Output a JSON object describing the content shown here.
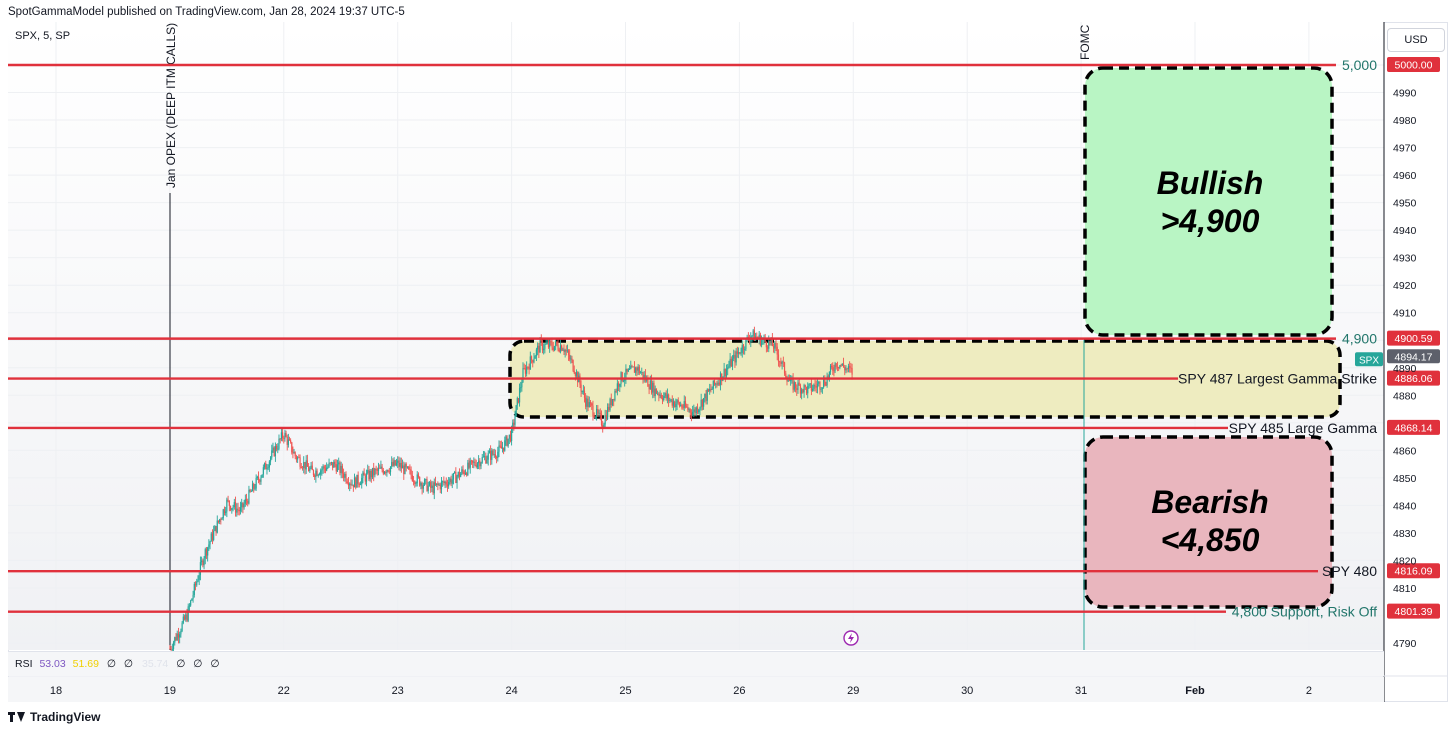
{
  "header": {
    "publisher": "SpotGammaModel published on TradingView.com, Jan 28, 2024 19:37 UTC-5"
  },
  "symbol": "SPX, 5, SP",
  "currency_button": "USD",
  "rsi": {
    "label": "RSI",
    "value1": "53.03",
    "value2": "51.69",
    "value3": "35.74",
    "value4": "∅",
    "placeholder": "∅"
  },
  "footer": {
    "brand": "TradingView"
  },
  "event_lines": [
    {
      "label": "Jan OPEX (DEEP ITM CALLS)",
      "x": "19"
    },
    {
      "label": "FOMC",
      "x": "31"
    }
  ],
  "zones": {
    "bullish": {
      "line1": "Bullish",
      "line2": ">4,900",
      "color": "#b9f5c4"
    },
    "bearish": {
      "line1": "Bearish",
      "line2": "<4,850",
      "color": "#e9b6be"
    },
    "range": {
      "color": "#eeecc0"
    }
  },
  "colors": {
    "level_line": "#e0313c",
    "up_candle": "#26a69a",
    "down_candle": "#ef5350",
    "price_tag": "#5d606b",
    "fomc_line": "#26a69a",
    "green_text": "#22766b"
  },
  "chart_data": {
    "type": "candlestick",
    "title": "",
    "x_ticks": [
      {
        "label": "18",
        "day": 17.5
      },
      {
        "label": "19",
        "day": 18.5
      },
      {
        "label": "22",
        "day": 19.5
      },
      {
        "label": "23",
        "day": 20.5
      },
      {
        "label": "24",
        "day": 21.5
      },
      {
        "label": "25",
        "day": 22.5
      },
      {
        "label": "26",
        "day": 23.5
      },
      {
        "label": "29",
        "day": 24.5
      },
      {
        "label": "30",
        "day": 25.5
      },
      {
        "label": "31",
        "day": 26.5
      },
      {
        "label": "Feb",
        "day": 27.5
      },
      {
        "label": "2",
        "day": 28.5
      }
    ],
    "y_ticks": [
      4790,
      4800,
      4810,
      4820,
      4830,
      4840,
      4850,
      4860,
      4870,
      4880,
      4890,
      4900,
      4910,
      4920,
      4930,
      4940,
      4950,
      4960,
      4970,
      4980,
      4990,
      5000
    ],
    "ylim": [
      4787,
      5006
    ],
    "levels": [
      {
        "value": 5000.0,
        "tag": "5000.00",
        "label": "5,000",
        "label_style": "green"
      },
      {
        "value": 4900.59,
        "tag": "4900.59",
        "label": "4,900",
        "label_style": "green"
      },
      {
        "value": 4886.06,
        "tag": "4886.06",
        "label": "SPY 487 Largest Gamma Strike",
        "label_style": "black"
      },
      {
        "value": 4868.14,
        "tag": "4868.14",
        "label": "SPY 485 Large Gamma",
        "label_style": "black"
      },
      {
        "value": 4816.09,
        "tag": "4816.09",
        "label": "SPY 480",
        "label_style": "black"
      },
      {
        "value": 4801.39,
        "tag": "4801.39",
        "label": "4,800 Support, Risk Off",
        "label_style": "green"
      }
    ],
    "last_price": {
      "value": 4894.17,
      "tag": "4894.17",
      "symbol_badge": "SPX"
    },
    "price_path": [
      {
        "day": 18.5,
        "close": 4788
      },
      {
        "day": 18.65,
        "close": 4800
      },
      {
        "day": 18.8,
        "close": 4822
      },
      {
        "day": 19.0,
        "close": 4841
      },
      {
        "day": 19.12,
        "close": 4838
      },
      {
        "day": 19.5,
        "close": 4866
      },
      {
        "day": 19.6,
        "close": 4858
      },
      {
        "day": 19.75,
        "close": 4852
      },
      {
        "day": 19.95,
        "close": 4855
      },
      {
        "day": 20.1,
        "close": 4848
      },
      {
        "day": 20.3,
        "close": 4852
      },
      {
        "day": 20.5,
        "close": 4855
      },
      {
        "day": 20.65,
        "close": 4850
      },
      {
        "day": 20.8,
        "close": 4846
      },
      {
        "day": 21.0,
        "close": 4850
      },
      {
        "day": 21.2,
        "close": 4856
      },
      {
        "day": 21.4,
        "close": 4860
      },
      {
        "day": 21.5,
        "close": 4866
      },
      {
        "day": 21.6,
        "close": 4888
      },
      {
        "day": 21.75,
        "close": 4898
      },
      {
        "day": 21.95,
        "close": 4898
      },
      {
        "day": 22.05,
        "close": 4890
      },
      {
        "day": 22.15,
        "close": 4878
      },
      {
        "day": 22.3,
        "close": 4870
      },
      {
        "day": 22.45,
        "close": 4886
      },
      {
        "day": 22.6,
        "close": 4890
      },
      {
        "day": 22.75,
        "close": 4882
      },
      {
        "day": 22.9,
        "close": 4878
      },
      {
        "day": 23.1,
        "close": 4874
      },
      {
        "day": 23.25,
        "close": 4882
      },
      {
        "day": 23.45,
        "close": 4893
      },
      {
        "day": 23.6,
        "close": 4902
      },
      {
        "day": 23.8,
        "close": 4898
      },
      {
        "day": 23.95,
        "close": 4884
      },
      {
        "day": 24.1,
        "close": 4882
      },
      {
        "day": 24.25,
        "close": 4885
      },
      {
        "day": 24.35,
        "close": 4892
      },
      {
        "day": 24.5,
        "close": 4888
      }
    ]
  }
}
